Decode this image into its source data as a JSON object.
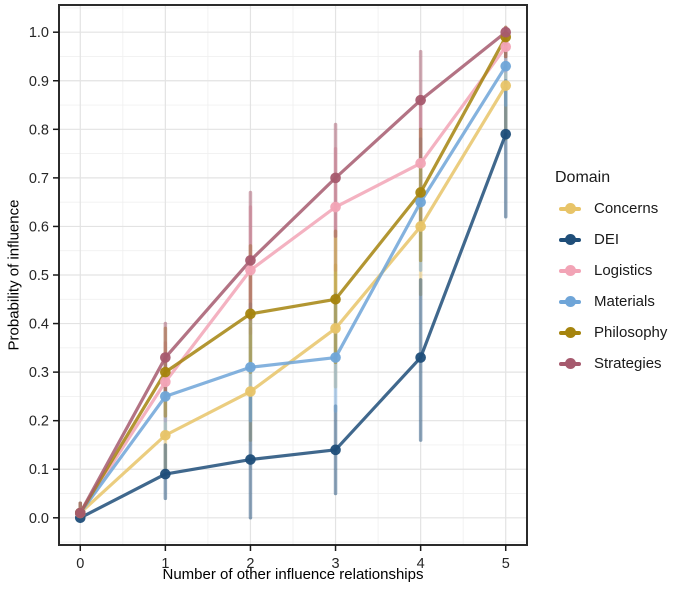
{
  "figure": {
    "x_axis_label": "Number of other influence relationships",
    "y_axis_label": "Probability of influence"
  },
  "legend": {
    "title": "Domain"
  },
  "chart_data": {
    "type": "line",
    "title": "",
    "xlabel": "Number of other influence relationships",
    "ylabel": "Probability of influence",
    "x": [
      0,
      1,
      2,
      3,
      4,
      5
    ],
    "x_tick_labels": [
      "0",
      "1",
      "2",
      "3",
      "4",
      "5"
    ],
    "y_ticks": [
      0.0,
      0.1,
      0.2,
      0.3,
      0.4,
      0.5,
      0.6,
      0.7,
      0.8,
      0.9,
      1.0
    ],
    "y_tick_labels": [
      "0.0",
      "0.1",
      "0.2",
      "0.3",
      "0.4",
      "0.5",
      "0.6",
      "0.7",
      "0.8",
      "0.9",
      "1.0"
    ],
    "xlim": [
      -0.25,
      5.25
    ],
    "ylim": [
      -0.056,
      1.056
    ],
    "grid": "major+minor",
    "legend_position": "right",
    "legend_title": "Domain",
    "error_bars": true,
    "series": [
      {
        "name": "Concerns",
        "color": "#E8C468",
        "values": [
          0.01,
          0.17,
          0.26,
          0.39,
          0.6,
          0.89
        ],
        "err_lo": [
          0.0,
          0.1,
          0.16,
          0.27,
          0.46,
          0.78
        ],
        "err_hi": [
          0.03,
          0.26,
          0.39,
          0.52,
          0.73,
          0.96
        ]
      },
      {
        "name": "DEI",
        "color": "#1F4E79",
        "values": [
          0.0,
          0.09,
          0.12,
          0.14,
          0.33,
          0.79
        ],
        "err_lo": [
          0.0,
          0.04,
          0.0,
          0.05,
          0.16,
          0.62
        ],
        "err_hi": [
          0.01,
          0.15,
          0.25,
          0.23,
          0.49,
          0.9
        ]
      },
      {
        "name": "Logistics",
        "color": "#F2A4B6",
        "values": [
          0.01,
          0.28,
          0.51,
          0.64,
          0.73,
          0.97
        ],
        "err_lo": [
          0.0,
          0.2,
          0.38,
          0.51,
          0.6,
          0.92
        ],
        "err_hi": [
          0.03,
          0.36,
          0.64,
          0.76,
          0.85,
          1.0
        ]
      },
      {
        "name": "Materials",
        "color": "#6FA5D8",
        "values": [
          0.01,
          0.25,
          0.31,
          0.33,
          0.65,
          0.93
        ],
        "err_lo": [
          0.0,
          0.17,
          0.2,
          0.22,
          0.51,
          0.85
        ],
        "err_hi": [
          0.03,
          0.33,
          0.44,
          0.46,
          0.78,
          0.98
        ]
      },
      {
        "name": "Philosophy",
        "color": "#A5840E",
        "values": [
          0.01,
          0.3,
          0.42,
          0.45,
          0.67,
          0.99
        ],
        "err_lo": [
          0.0,
          0.21,
          0.3,
          0.32,
          0.53,
          0.95
        ],
        "err_hi": [
          0.03,
          0.39,
          0.56,
          0.59,
          0.8,
          1.01
        ]
      },
      {
        "name": "Strategies",
        "color": "#A65A6E",
        "values": [
          0.01,
          0.33,
          0.53,
          0.7,
          0.86,
          1.0
        ],
        "err_lo": [
          0.0,
          0.26,
          0.41,
          0.58,
          0.74,
          0.95
        ],
        "err_hi": [
          0.03,
          0.4,
          0.67,
          0.81,
          0.96,
          1.01
        ]
      }
    ]
  }
}
